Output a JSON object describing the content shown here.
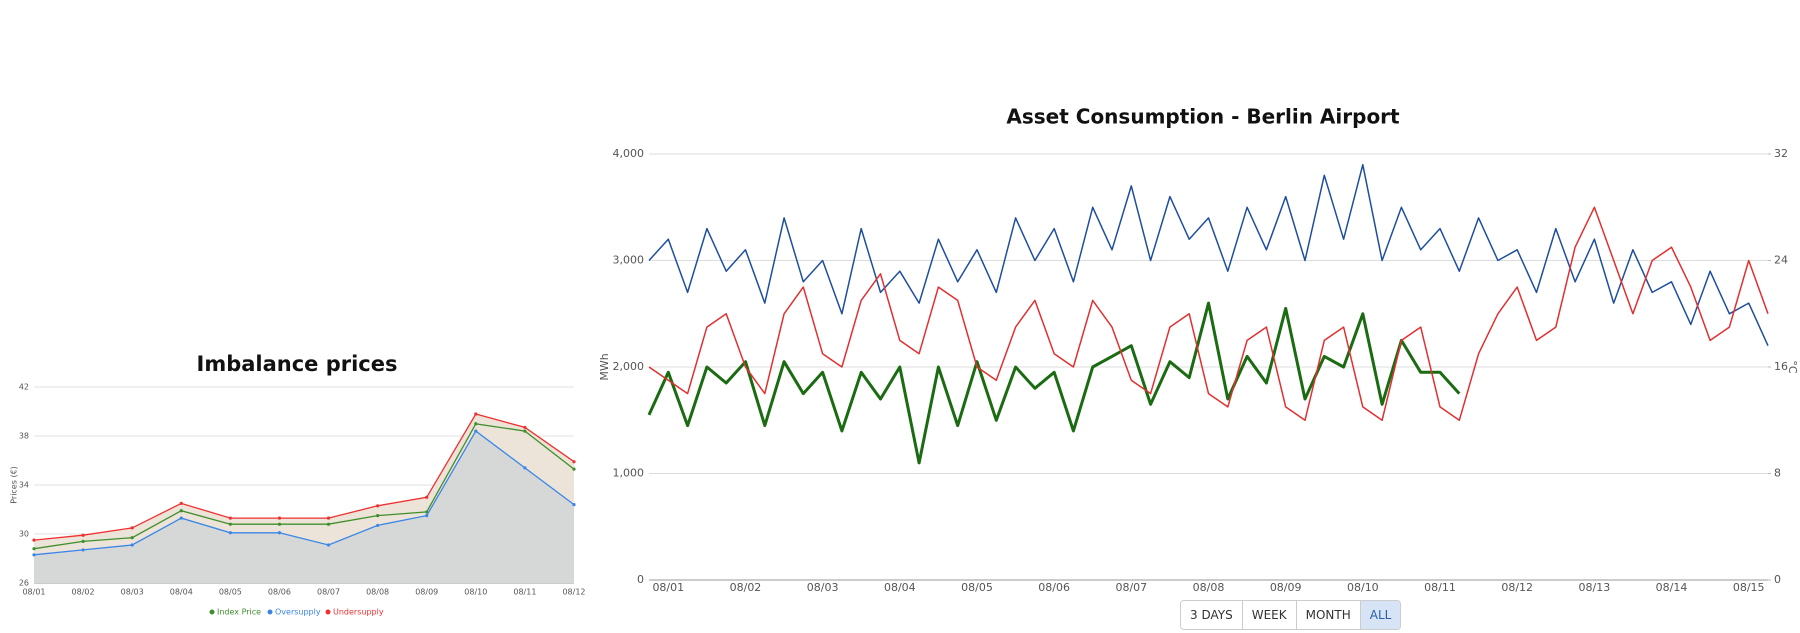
{
  "chart_data": [
    {
      "type": "area",
      "title": "Imbalance prices",
      "y_label": "Prices (€)",
      "categories": [
        "08/01",
        "08/02",
        "08/03",
        "08/04",
        "08/05",
        "08/06",
        "08/07",
        "08/08",
        "08/09",
        "08/10",
        "08/11",
        "08/12"
      ],
      "series": [
        {
          "name": "Index Price",
          "color": "#3f8f2d",
          "values": [
            28.8,
            29.4,
            29.7,
            31.9,
            30.8,
            30.8,
            30.8,
            31.5,
            31.8,
            39.0,
            38.4,
            35.3
          ]
        },
        {
          "name": "Oversupply",
          "color": "#3a86e8",
          "fill": "#d6d7d7",
          "values": [
            28.3,
            28.7,
            29.1,
            31.3,
            30.1,
            30.1,
            29.1,
            30.7,
            31.5,
            38.4,
            35.4,
            32.4
          ]
        },
        {
          "name": "Undersupply",
          "color": "#f03030",
          "fill": "#ece4d8",
          "values": [
            29.5,
            29.9,
            30.5,
            32.5,
            31.3,
            31.3,
            31.3,
            32.3,
            33.0,
            39.8,
            38.7,
            35.9
          ]
        }
      ],
      "ylim": [
        26,
        42
      ],
      "yticks": [
        26,
        30,
        34,
        38,
        42
      ],
      "grid": true,
      "legend": "bottom"
    },
    {
      "type": "line",
      "title": "Asset Consumption - Berlin Airport",
      "y_label": "MWh",
      "y2_label": "°C",
      "categories": [
        null,
        "08/01",
        null,
        null,
        null,
        "08/02",
        null,
        null,
        null,
        "08/03",
        null,
        null,
        null,
        "08/04",
        null,
        null,
        null,
        "08/05",
        null,
        null,
        null,
        "08/06",
        null,
        null,
        null,
        "08/07",
        null,
        null,
        null,
        "08/08",
        null,
        null,
        null,
        "08/09",
        null,
        null,
        null,
        "08/10",
        null,
        null,
        null,
        "08/11",
        null,
        null,
        null,
        "08/12",
        null,
        null,
        null,
        "08/13",
        null,
        null,
        null,
        "08/14",
        null,
        null,
        null,
        "08/15",
        null
      ],
      "series": [
        {
          "color": "#1f4e9e",
          "width": 1.5,
          "values": [
            3000,
            3200,
            2700,
            3300,
            2900,
            3100,
            2600,
            3400,
            2800,
            3000,
            2500,
            3300,
            2700,
            2900,
            2600,
            3200,
            2800,
            3100,
            2700,
            3400,
            3000,
            3300,
            2800,
            3500,
            3100,
            3700,
            3000,
            3600,
            3200,
            3400,
            2900,
            3500,
            3100,
            3600,
            3000,
            3800,
            3200,
            3900,
            3000,
            3500,
            3100,
            3300,
            2900,
            3400,
            3000,
            3100,
            2700,
            3300,
            2800,
            3200,
            2600,
            3100,
            2700,
            2800,
            2400,
            2900,
            2500,
            2600,
            2200
          ]
        },
        {
          "color": "#1a6b12",
          "width": 3,
          "values": [
            1550,
            1950,
            1450,
            2000,
            1850,
            2050,
            1450,
            2050,
            1750,
            1950,
            1400,
            1950,
            1700,
            2000,
            1100,
            2000,
            1450,
            2050,
            1500,
            2000,
            1800,
            1950,
            1400,
            2000,
            2100,
            2200,
            1650,
            2050,
            1900,
            2600,
            1700,
            2100,
            1850,
            2550,
            1700,
            2100,
            2000,
            2500,
            1650,
            2250,
            1950,
            1950,
            1750,
            null,
            null,
            null,
            null,
            null,
            null,
            null,
            null,
            null,
            null,
            null,
            null,
            null,
            null,
            null,
            null
          ]
        },
        {
          "color": "#e03030",
          "width": 1.5,
          "axis": "y2",
          "values": [
            16,
            15,
            14,
            19,
            20,
            16,
            14,
            20,
            22,
            17,
            16,
            21,
            23,
            18,
            17,
            22,
            21,
            16,
            15,
            19,
            21,
            17,
            16,
            21,
            19,
            15,
            14,
            19,
            20,
            14,
            13,
            18,
            19,
            13,
            12,
            18,
            19,
            13,
            12,
            18,
            19,
            13,
            12,
            17,
            20,
            22,
            18,
            19,
            25,
            28,
            24,
            20,
            24,
            25,
            22,
            18,
            19,
            24,
            20
          ]
        }
      ],
      "ylim": [
        0,
        4000
      ],
      "yticks": [
        0,
        {
          "value": 1000,
          "label": "1,000"
        },
        {
          "value": 2000,
          "label": "2,000"
        },
        {
          "value": 3000,
          "label": "3,000"
        },
        {
          "value": 4000,
          "label": "4,000"
        }
      ],
      "y2lim": [
        0,
        32
      ],
      "y2ticks": [
        0,
        8,
        16,
        24,
        32
      ],
      "grid": true,
      "range_buttons": [
        "3 DAYS",
        "WEEK",
        "MONTH",
        "ALL"
      ],
      "selected_button": 3
    }
  ]
}
